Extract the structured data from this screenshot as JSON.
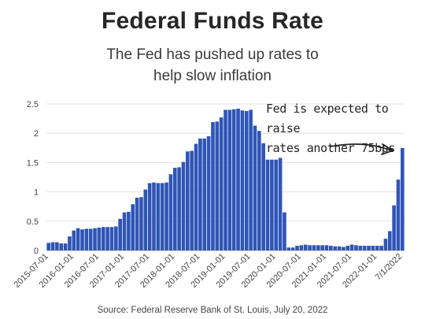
{
  "header": {
    "title": "Federal Funds Rate",
    "subtitle_line1": "The Fed has pushed up rates to",
    "subtitle_line2": "help slow inflation"
  },
  "annotation": {
    "line1": "Fed is expected to raise",
    "line2": "rates another 75bps"
  },
  "footer": {
    "source": "Source: Federal Reserve Bank of St. Louis, July 20, 2022"
  },
  "chart_data": {
    "type": "bar",
    "title": "Federal Funds Rate",
    "xlabel": "",
    "ylabel": "",
    "ylim": [
      0,
      2.5
    ],
    "yticks": [
      "0",
      "0.5",
      "1",
      "1.5",
      "2",
      "2.5"
    ],
    "grid": true,
    "bar_color": "#2f55b6",
    "categories": [
      "2015-07-01",
      "2015-08-01",
      "2015-09-01",
      "2015-10-01",
      "2015-11-01",
      "2015-12-01",
      "2016-01-01",
      "2016-02-01",
      "2016-03-01",
      "2016-04-01",
      "2016-05-01",
      "2016-06-01",
      "2016-07-01",
      "2016-08-01",
      "2016-09-01",
      "2016-10-01",
      "2016-11-01",
      "2016-12-01",
      "2017-01-01",
      "2017-02-01",
      "2017-03-01",
      "2017-04-01",
      "2017-05-01",
      "2017-06-01",
      "2017-07-01",
      "2017-08-01",
      "2017-09-01",
      "2017-10-01",
      "2017-11-01",
      "2017-12-01",
      "2018-01-01",
      "2018-02-01",
      "2018-03-01",
      "2018-04-01",
      "2018-05-01",
      "2018-06-01",
      "2018-07-01",
      "2018-08-01",
      "2018-09-01",
      "2018-10-01",
      "2018-11-01",
      "2018-12-01",
      "2019-01-01",
      "2019-02-01",
      "2019-03-01",
      "2019-04-01",
      "2019-05-01",
      "2019-06-01",
      "2019-07-01",
      "2019-08-01",
      "2019-09-01",
      "2019-10-01",
      "2019-11-01",
      "2019-12-01",
      "2020-01-01",
      "2020-02-01",
      "2020-03-01",
      "2020-04-01",
      "2020-05-01",
      "2020-06-01",
      "2020-07-01",
      "2020-08-01",
      "2020-09-01",
      "2020-10-01",
      "2020-11-01",
      "2020-12-01",
      "2021-01-01",
      "2021-02-01",
      "2021-03-01",
      "2021-04-01",
      "2021-05-01",
      "2021-06-01",
      "2021-07-01",
      "2021-08-01",
      "2021-09-01",
      "2021-10-01",
      "2021-11-01",
      "2021-12-01",
      "2022-01-01",
      "2022-02-01",
      "2022-03-01",
      "2022-04-01",
      "2022-05-01",
      "2022-06-01",
      "2022-07-01"
    ],
    "values": [
      0.13,
      0.14,
      0.14,
      0.12,
      0.12,
      0.24,
      0.34,
      0.38,
      0.36,
      0.37,
      0.37,
      0.38,
      0.39,
      0.4,
      0.4,
      0.4,
      0.41,
      0.54,
      0.65,
      0.66,
      0.79,
      0.9,
      0.91,
      1.04,
      1.15,
      1.16,
      1.15,
      1.15,
      1.16,
      1.3,
      1.41,
      1.42,
      1.51,
      1.69,
      1.7,
      1.82,
      1.91,
      1.91,
      1.95,
      2.19,
      2.2,
      2.27,
      2.4,
      2.4,
      2.41,
      2.42,
      2.39,
      2.38,
      2.4,
      2.13,
      2.04,
      1.83,
      1.55,
      1.55,
      1.55,
      1.58,
      0.65,
      0.05,
      0.05,
      0.08,
      0.09,
      0.1,
      0.09,
      0.09,
      0.09,
      0.09,
      0.09,
      0.08,
      0.07,
      0.07,
      0.06,
      0.08,
      0.1,
      0.09,
      0.08,
      0.08,
      0.08,
      0.08,
      0.08,
      0.08,
      0.2,
      0.33,
      0.77,
      1.21,
      1.75
    ],
    "x_tick_labels": [
      {
        "index": 0,
        "label": "2015-07-01"
      },
      {
        "index": 6,
        "label": "2016-01-01"
      },
      {
        "index": 12,
        "label": "2016-07-01"
      },
      {
        "index": 18,
        "label": "2017-01-01"
      },
      {
        "index": 24,
        "label": "2017-07-01"
      },
      {
        "index": 30,
        "label": "2018-01-01"
      },
      {
        "index": 36,
        "label": "2018-07-01"
      },
      {
        "index": 42,
        "label": "2019-01-01"
      },
      {
        "index": 48,
        "label": "2019-07-01"
      },
      {
        "index": 54,
        "label": "2020-01-01"
      },
      {
        "index": 60,
        "label": "2020-07-01"
      },
      {
        "index": 66,
        "label": "2021-01-01"
      },
      {
        "index": 72,
        "label": "2021-07-01"
      },
      {
        "index": 78,
        "label": "2022-01-01"
      },
      {
        "index": 84,
        "label": "7/1/2022"
      }
    ]
  }
}
